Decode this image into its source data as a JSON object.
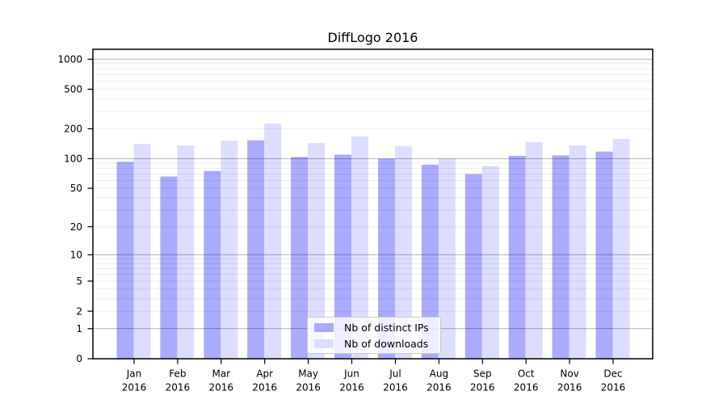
{
  "chart_data": {
    "type": "bar",
    "title": "DiffLogo 2016",
    "categories": [
      "Jan 2016",
      "Feb 2016",
      "Mar 2016",
      "Apr 2016",
      "May 2016",
      "Jun 2016",
      "Jul 2016",
      "Aug 2016",
      "Sep 2016",
      "Oct 2016",
      "Nov 2016",
      "Dec 2016"
    ],
    "series": [
      {
        "name": "Nb of distinct IPs",
        "color": "#aaaaff",
        "values": [
          93,
          66,
          75,
          153,
          104,
          110,
          100,
          87,
          70,
          107,
          108,
          118
        ]
      },
      {
        "name": "Nb of downloads",
        "color": "#ddddff",
        "values": [
          141,
          136,
          152,
          227,
          144,
          168,
          134,
          100,
          84,
          147,
          136,
          158
        ]
      }
    ],
    "y_axis": {
      "scale": "log10(value+1)",
      "tick_labels": [
        0,
        1,
        2,
        5,
        10,
        20,
        50,
        100,
        200,
        500,
        1000
      ],
      "range_top": 1250,
      "grid": "horizontal major at powers of 10, faint minors at 2-9 per decade"
    },
    "x_axis": {
      "tick_style": "two-line month/year labels"
    },
    "legend": {
      "position": "inside-bottom-center"
    },
    "colors": {
      "major_grid": "rgba(0,0,0,0.30)",
      "minor_grid": "rgba(0,0,0,0.08)",
      "axis_frame": "#000000",
      "background": "#ffffff"
    }
  }
}
